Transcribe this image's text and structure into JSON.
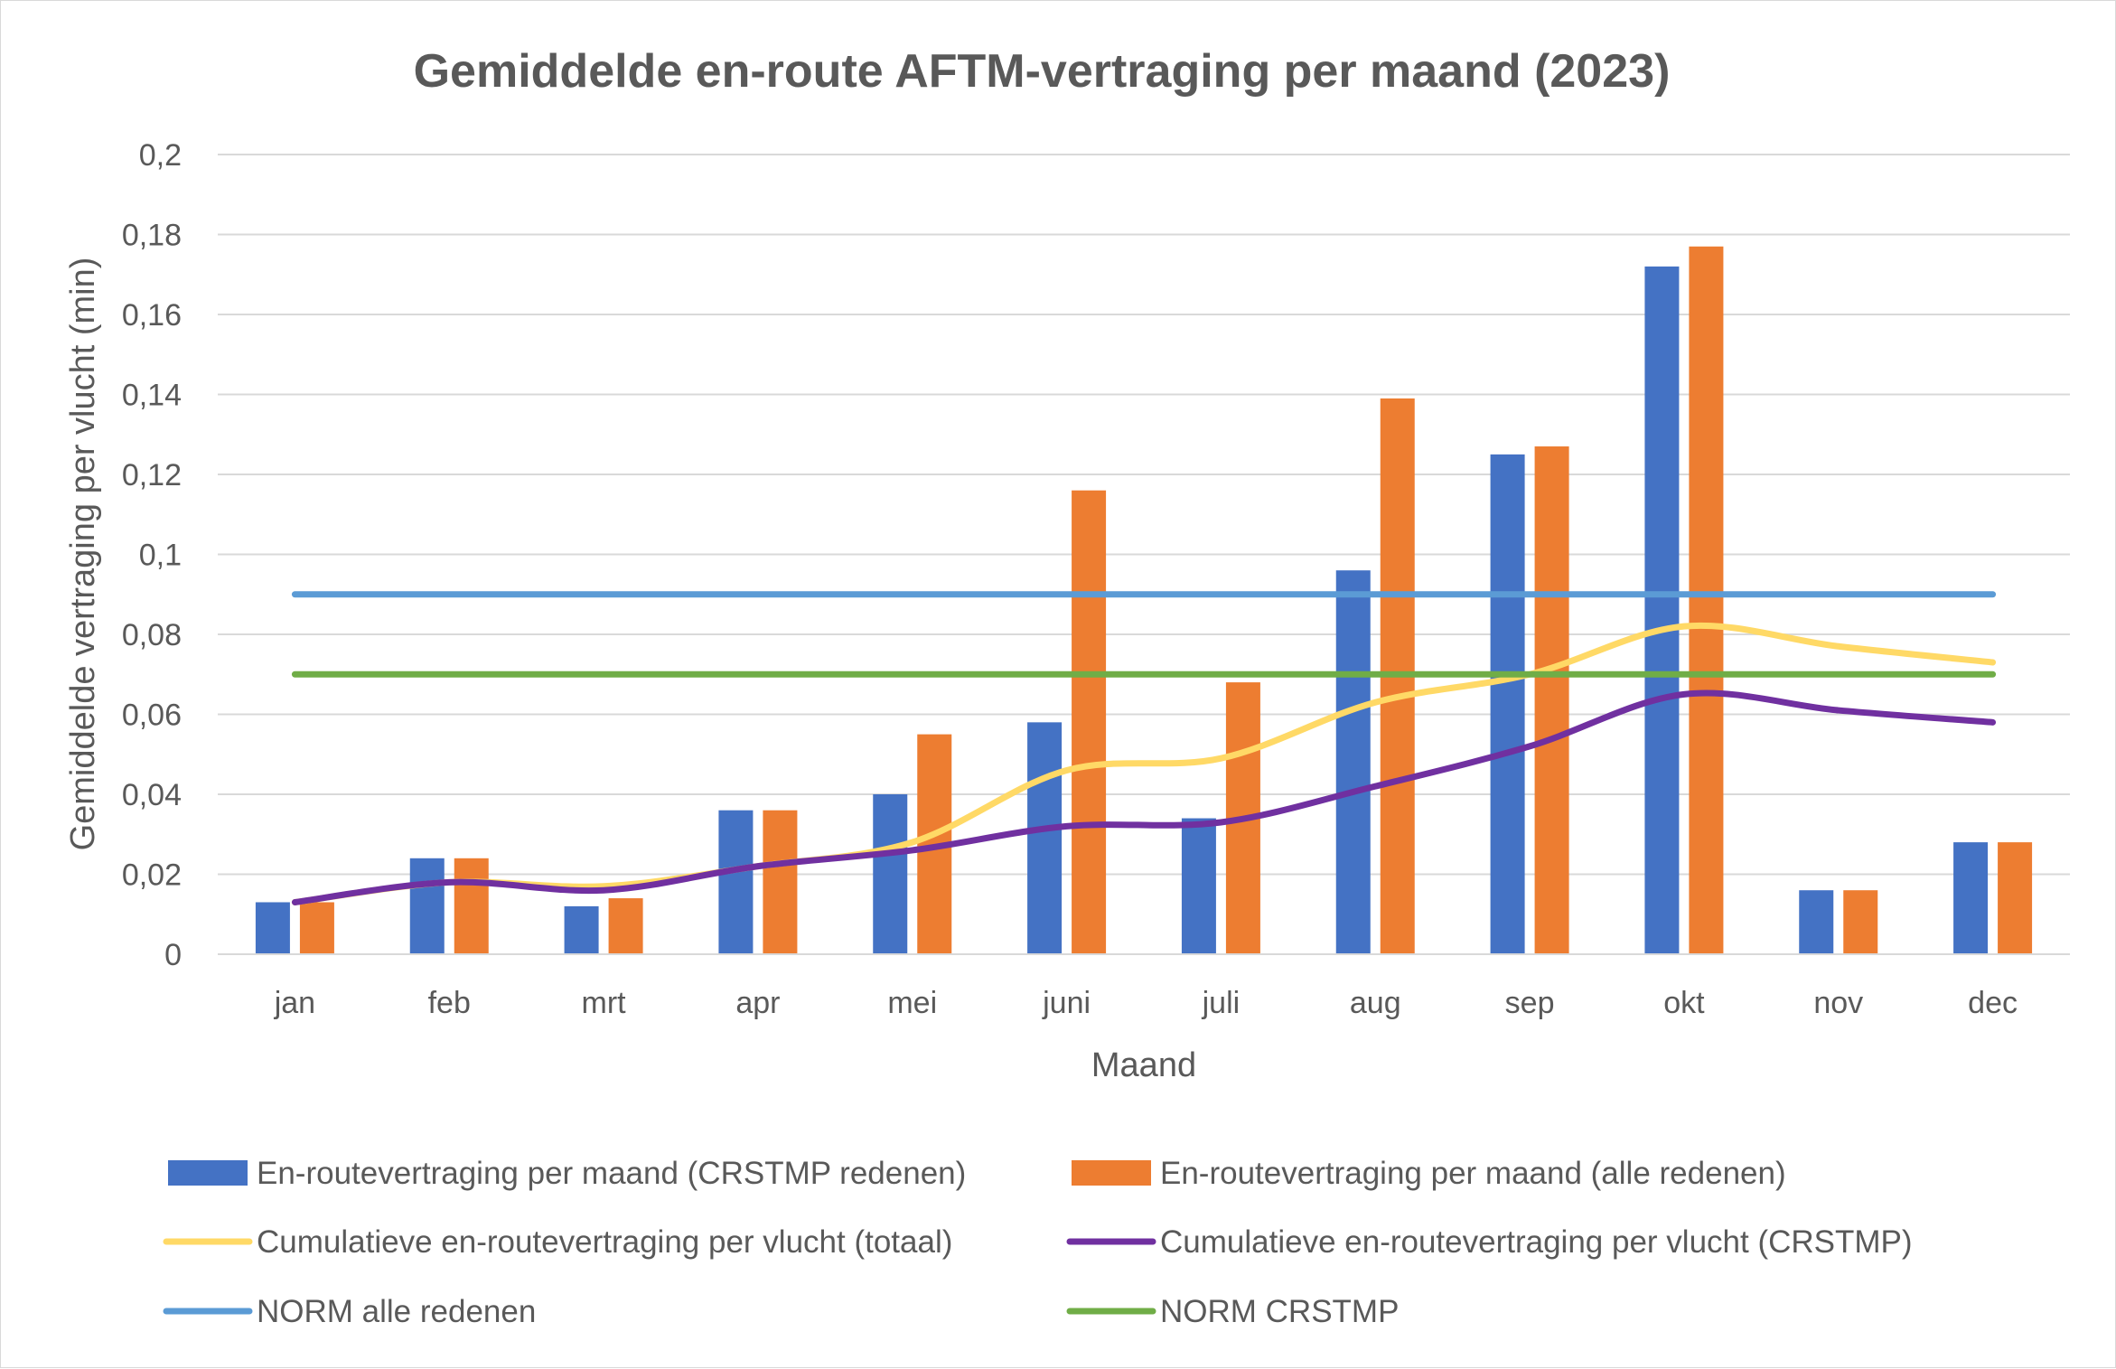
{
  "chart_data": {
    "type": "bar",
    "title": "Gemiddelde en-route AFTM-vertraging per maand (2023)",
    "xlabel": "Maand",
    "ylabel": "Gemiddelde vertraging per vlucht (min)",
    "ylim": [
      0,
      0.2
    ],
    "yticks": [
      "0",
      "0,02",
      "0,04",
      "0,06",
      "0,08",
      "0,1",
      "0,12",
      "0,14",
      "0,16",
      "0,18",
      "0,2"
    ],
    "grid": true,
    "legend_position": "bottom",
    "categories": [
      "jan",
      "feb",
      "mrt",
      "apr",
      "mei",
      "juni",
      "juli",
      "aug",
      "sep",
      "okt",
      "nov",
      "dec"
    ],
    "series": [
      {
        "name": "En-routevertraging per maand (CRSTMP redenen)",
        "kind": "bar",
        "color": "#4472c4",
        "values": [
          0.013,
          0.024,
          0.012,
          0.036,
          0.04,
          0.058,
          0.034,
          0.096,
          0.125,
          0.172,
          0.016,
          0.028
        ]
      },
      {
        "name": "En-routevertraging per maand (alle redenen)",
        "kind": "bar",
        "color": "#ed7d31",
        "values": [
          0.013,
          0.024,
          0.014,
          0.036,
          0.055,
          0.116,
          0.068,
          0.139,
          0.127,
          0.177,
          0.016,
          0.028
        ]
      },
      {
        "name": "Cumulatieve en-routevertraging per vlucht (totaal)",
        "kind": "line",
        "color": "#ffd966",
        "values": [
          0.013,
          0.018,
          0.017,
          0.022,
          0.028,
          0.046,
          0.049,
          0.063,
          0.07,
          0.082,
          0.077,
          0.073
        ]
      },
      {
        "name": "Cumulatieve en-routevertraging per vlucht (CRSTMP)",
        "kind": "line",
        "color": "#7030a0",
        "values": [
          0.013,
          0.018,
          0.016,
          0.022,
          0.026,
          0.032,
          0.033,
          0.042,
          0.052,
          0.065,
          0.061,
          0.058
        ]
      },
      {
        "name": "NORM alle redenen",
        "kind": "line",
        "color": "#5b9bd5",
        "values": [
          0.09,
          0.09,
          0.09,
          0.09,
          0.09,
          0.09,
          0.09,
          0.09,
          0.09,
          0.09,
          0.09,
          0.09
        ]
      },
      {
        "name": "NORM CRSTMP",
        "kind": "line",
        "color": "#70ad47",
        "values": [
          0.07,
          0.07,
          0.07,
          0.07,
          0.07,
          0.07,
          0.07,
          0.07,
          0.07,
          0.07,
          0.07,
          0.07
        ]
      }
    ]
  }
}
